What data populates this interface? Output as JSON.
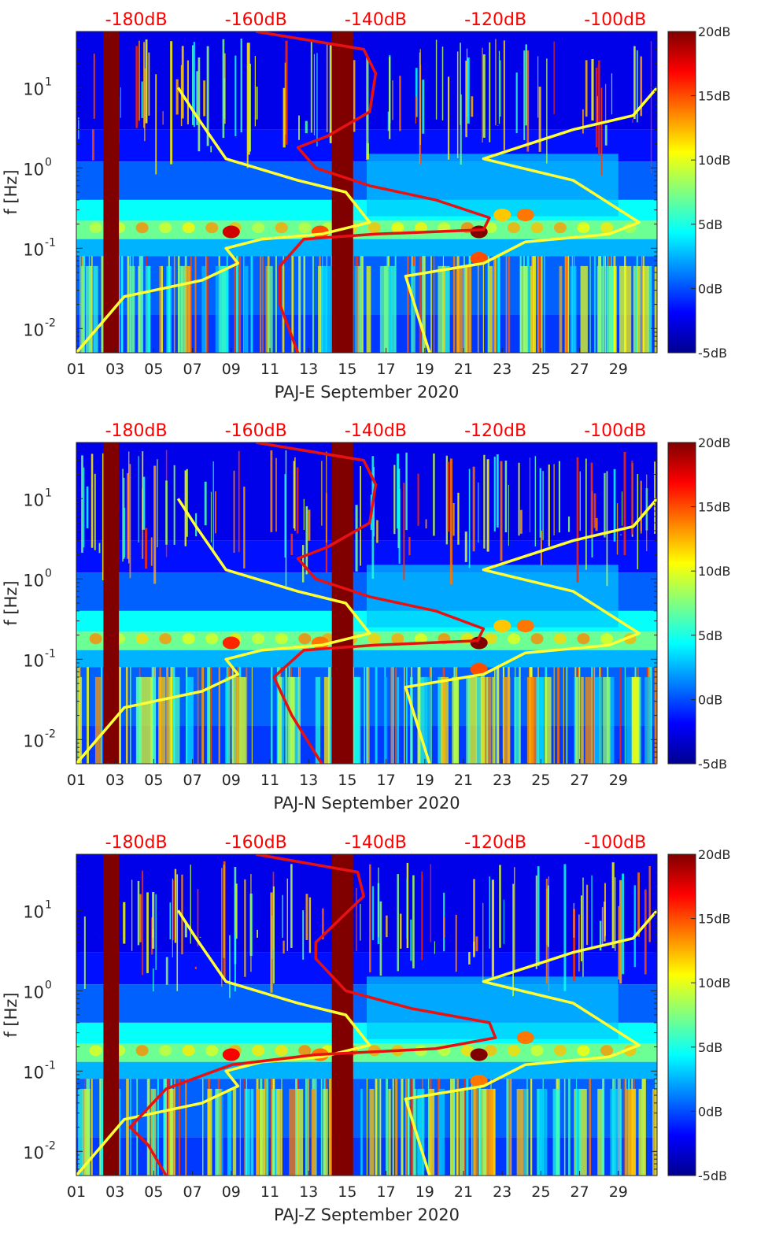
{
  "figure": {
    "background": "#ffffff",
    "colormap": [
      "#00008f",
      "#0000ff",
      "#0080ff",
      "#00ffff",
      "#80ff80",
      "#ffff00",
      "#ff8000",
      "#ff0000",
      "#800000"
    ]
  },
  "chart_data": [
    {
      "type": "heatmap",
      "panel": "PAJ-E",
      "xlabel": "PAJ-E September 2020",
      "ylabel": "f [Hz]",
      "xticks": [
        "01",
        "03",
        "05",
        "07",
        "09",
        "11",
        "13",
        "15",
        "17",
        "19",
        "21",
        "23",
        "25",
        "27",
        "29"
      ],
      "x_range_days": [
        1,
        31
      ],
      "yscale": "log",
      "y_range_hz": [
        0.005,
        50
      ],
      "yticks": [
        {
          "value": 0.01,
          "base": "10",
          "exp": "-2"
        },
        {
          "value": 0.1,
          "base": "10",
          "exp": "-1"
        },
        {
          "value": 1,
          "base": "10",
          "exp": "0"
        },
        {
          "value": 10,
          "base": "10",
          "exp": "1"
        }
      ],
      "top_axis_ticks": [
        "-180dB",
        "-160dB",
        "-140dB",
        "-120dB",
        "-100dB"
      ],
      "top_axis_color": "#ff0000",
      "top_axis_range_db": [
        -190,
        -93
      ],
      "colorbar": {
        "ticks": [
          "20dB",
          "15dB",
          "10dB",
          "5dB",
          "0dB",
          "-5dB"
        ],
        "range_db": [
          -5,
          20
        ]
      },
      "gap_bands_days": [
        [
          2.4,
          3.2
        ],
        [
          14.2,
          15.3
        ]
      ],
      "hotspots": [
        {
          "day": 9.0,
          "freq": 0.16,
          "level_db": 18
        },
        {
          "day": 13.6,
          "freq": 0.16,
          "level_db": 15
        },
        {
          "day": 21.8,
          "freq": 0.16,
          "level_db": 20
        },
        {
          "day": 23.0,
          "freq": 0.26,
          "level_db": 12
        },
        {
          "day": 24.2,
          "freq": 0.26,
          "level_db": 14
        },
        {
          "day": 21.8,
          "freq": 0.075,
          "level_db": 15
        }
      ],
      "series": [
        {
          "name": "reference curve (yellow, left)",
          "color": "#ffff33",
          "x_db": [
            -173,
            -170,
            -165,
            -153,
            -145,
            -141,
            -149,
            -159,
            -165,
            -163,
            -169,
            -182,
            -190
          ],
          "y_hz": [
            10,
            4.5,
            1.3,
            0.7,
            0.5,
            0.21,
            0.15,
            0.13,
            0.1,
            0.065,
            0.04,
            0.025,
            0.005
          ]
        },
        {
          "name": "reference curve (yellow, right)",
          "color": "#ffff33",
          "x_db": [
            -93,
            -97,
            -107,
            -122,
            -107,
            -96,
            -101,
            -115,
            -122,
            -135,
            -131
          ],
          "y_hz": [
            10,
            4.5,
            3,
            1.3,
            0.7,
            0.21,
            0.15,
            0.12,
            0.065,
            0.045,
            0.005
          ]
        },
        {
          "name": "station PSD (red)",
          "color": "#e81111",
          "x_db": [
            -160,
            -142,
            -140,
            -141,
            -148,
            -153,
            -150,
            -141,
            -130,
            -121,
            -122,
            -140,
            -152,
            -156,
            -156,
            -153
          ],
          "y_hz": [
            50,
            30,
            15,
            5,
            2.5,
            1.8,
            1.0,
            0.6,
            0.4,
            0.24,
            0.17,
            0.15,
            0.13,
            0.06,
            0.02,
            0.005
          ]
        }
      ]
    },
    {
      "type": "heatmap",
      "panel": "PAJ-N",
      "xlabel": "PAJ-N September 2020",
      "ylabel": "f [Hz]",
      "xticks": [
        "01",
        "03",
        "05",
        "07",
        "09",
        "11",
        "13",
        "15",
        "17",
        "19",
        "21",
        "23",
        "25",
        "27",
        "29"
      ],
      "x_range_days": [
        1,
        31
      ],
      "yscale": "log",
      "y_range_hz": [
        0.005,
        50
      ],
      "yticks": [
        {
          "value": 0.01,
          "base": "10",
          "exp": "-2"
        },
        {
          "value": 0.1,
          "base": "10",
          "exp": "-1"
        },
        {
          "value": 1,
          "base": "10",
          "exp": "0"
        },
        {
          "value": 10,
          "base": "10",
          "exp": "1"
        }
      ],
      "top_axis_ticks": [
        "-180dB",
        "-160dB",
        "-140dB",
        "-120dB",
        "-100dB"
      ],
      "top_axis_color": "#ff0000",
      "top_axis_range_db": [
        -190,
        -93
      ],
      "colorbar": {
        "ticks": [
          "20dB",
          "15dB",
          "10dB",
          "5dB",
          "0dB",
          "-5dB"
        ],
        "range_db": [
          -5,
          20
        ]
      },
      "gap_bands_days": [
        [
          2.4,
          3.2
        ],
        [
          14.2,
          15.3
        ]
      ],
      "hotspots": [
        {
          "day": 9.0,
          "freq": 0.16,
          "level_db": 16
        },
        {
          "day": 13.6,
          "freq": 0.16,
          "level_db": 14
        },
        {
          "day": 21.8,
          "freq": 0.16,
          "level_db": 20
        },
        {
          "day": 23.0,
          "freq": 0.26,
          "level_db": 12
        },
        {
          "day": 24.2,
          "freq": 0.26,
          "level_db": 14
        },
        {
          "day": 21.8,
          "freq": 0.075,
          "level_db": 15
        }
      ],
      "series": [
        {
          "name": "reference curve (yellow, left)",
          "color": "#ffff33",
          "x_db": [
            -173,
            -170,
            -165,
            -153,
            -145,
            -141,
            -149,
            -159,
            -165,
            -163,
            -169,
            -182,
            -190
          ],
          "y_hz": [
            10,
            4.5,
            1.3,
            0.7,
            0.5,
            0.21,
            0.15,
            0.13,
            0.1,
            0.065,
            0.04,
            0.025,
            0.005
          ]
        },
        {
          "name": "reference curve (yellow, right)",
          "color": "#ffff33",
          "x_db": [
            -93,
            -97,
            -107,
            -122,
            -107,
            -96,
            -101,
            -115,
            -122,
            -135,
            -131
          ],
          "y_hz": [
            10,
            4.5,
            3,
            1.3,
            0.7,
            0.21,
            0.15,
            0.12,
            0.065,
            0.045,
            0.005
          ]
        },
        {
          "name": "station PSD (red)",
          "color": "#e81111",
          "x_db": [
            -160,
            -142,
            -140,
            -141,
            -148,
            -153,
            -150,
            -141,
            -130,
            -122,
            -123,
            -140,
            -152,
            -157,
            -154,
            -149
          ],
          "y_hz": [
            50,
            30,
            15,
            5,
            2.5,
            1.8,
            1.0,
            0.6,
            0.4,
            0.24,
            0.17,
            0.15,
            0.13,
            0.06,
            0.02,
            0.005
          ]
        }
      ]
    },
    {
      "type": "heatmap",
      "panel": "PAJ-Z",
      "xlabel": "PAJ-Z September 2020",
      "ylabel": "f [Hz]",
      "xticks": [
        "01",
        "03",
        "05",
        "07",
        "09",
        "11",
        "13",
        "15",
        "17",
        "19",
        "21",
        "23",
        "25",
        "27",
        "29"
      ],
      "x_range_days": [
        1,
        31
      ],
      "yscale": "log",
      "y_range_hz": [
        0.005,
        50
      ],
      "yticks": [
        {
          "value": 0.01,
          "base": "10",
          "exp": "-2"
        },
        {
          "value": 0.1,
          "base": "10",
          "exp": "-1"
        },
        {
          "value": 1,
          "base": "10",
          "exp": "0"
        },
        {
          "value": 10,
          "base": "10",
          "exp": "1"
        }
      ],
      "top_axis_ticks": [
        "-180dB",
        "-160dB",
        "-140dB",
        "-120dB",
        "-100dB"
      ],
      "top_axis_color": "#ff0000",
      "top_axis_range_db": [
        -190,
        -93
      ],
      "colorbar": {
        "ticks": [
          "20dB",
          "15dB",
          "10dB",
          "5dB",
          "0dB",
          "-5dB"
        ],
        "range_db": [
          -5,
          20
        ]
      },
      "gap_bands_days": [
        [
          2.4,
          3.2
        ],
        [
          14.2,
          15.3
        ]
      ],
      "hotspots": [
        {
          "day": 9.0,
          "freq": 0.16,
          "level_db": 17
        },
        {
          "day": 13.6,
          "freq": 0.16,
          "level_db": 14
        },
        {
          "day": 21.8,
          "freq": 0.16,
          "level_db": 20
        },
        {
          "day": 24.2,
          "freq": 0.26,
          "level_db": 14
        },
        {
          "day": 21.8,
          "freq": 0.075,
          "level_db": 14
        }
      ],
      "series": [
        {
          "name": "reference curve (yellow, left)",
          "color": "#ffff33",
          "x_db": [
            -173,
            -170,
            -165,
            -153,
            -145,
            -141,
            -149,
            -159,
            -165,
            -163,
            -169,
            -182,
            -190
          ],
          "y_hz": [
            10,
            4.5,
            1.3,
            0.7,
            0.5,
            0.21,
            0.15,
            0.13,
            0.1,
            0.065,
            0.04,
            0.025,
            0.005
          ]
        },
        {
          "name": "reference curve (yellow, right)",
          "color": "#ffff33",
          "x_db": [
            -93,
            -97,
            -107,
            -122,
            -107,
            -96,
            -101,
            -115,
            -122,
            -135,
            -131
          ],
          "y_hz": [
            10,
            4.5,
            3,
            1.3,
            0.7,
            0.21,
            0.15,
            0.12,
            0.065,
            0.045,
            0.005
          ]
        },
        {
          "name": "station PSD (red)",
          "color": "#e81111",
          "x_db": [
            -160,
            -143,
            -142,
            -150,
            -150,
            -145,
            -134,
            -121,
            -120,
            -130,
            -150,
            -164,
            -175,
            -181,
            -178,
            -175
          ],
          "y_hz": [
            50,
            30,
            15,
            4,
            2.5,
            1.0,
            0.6,
            0.4,
            0.26,
            0.19,
            0.16,
            0.12,
            0.06,
            0.02,
            0.012,
            0.005
          ]
        }
      ]
    }
  ]
}
